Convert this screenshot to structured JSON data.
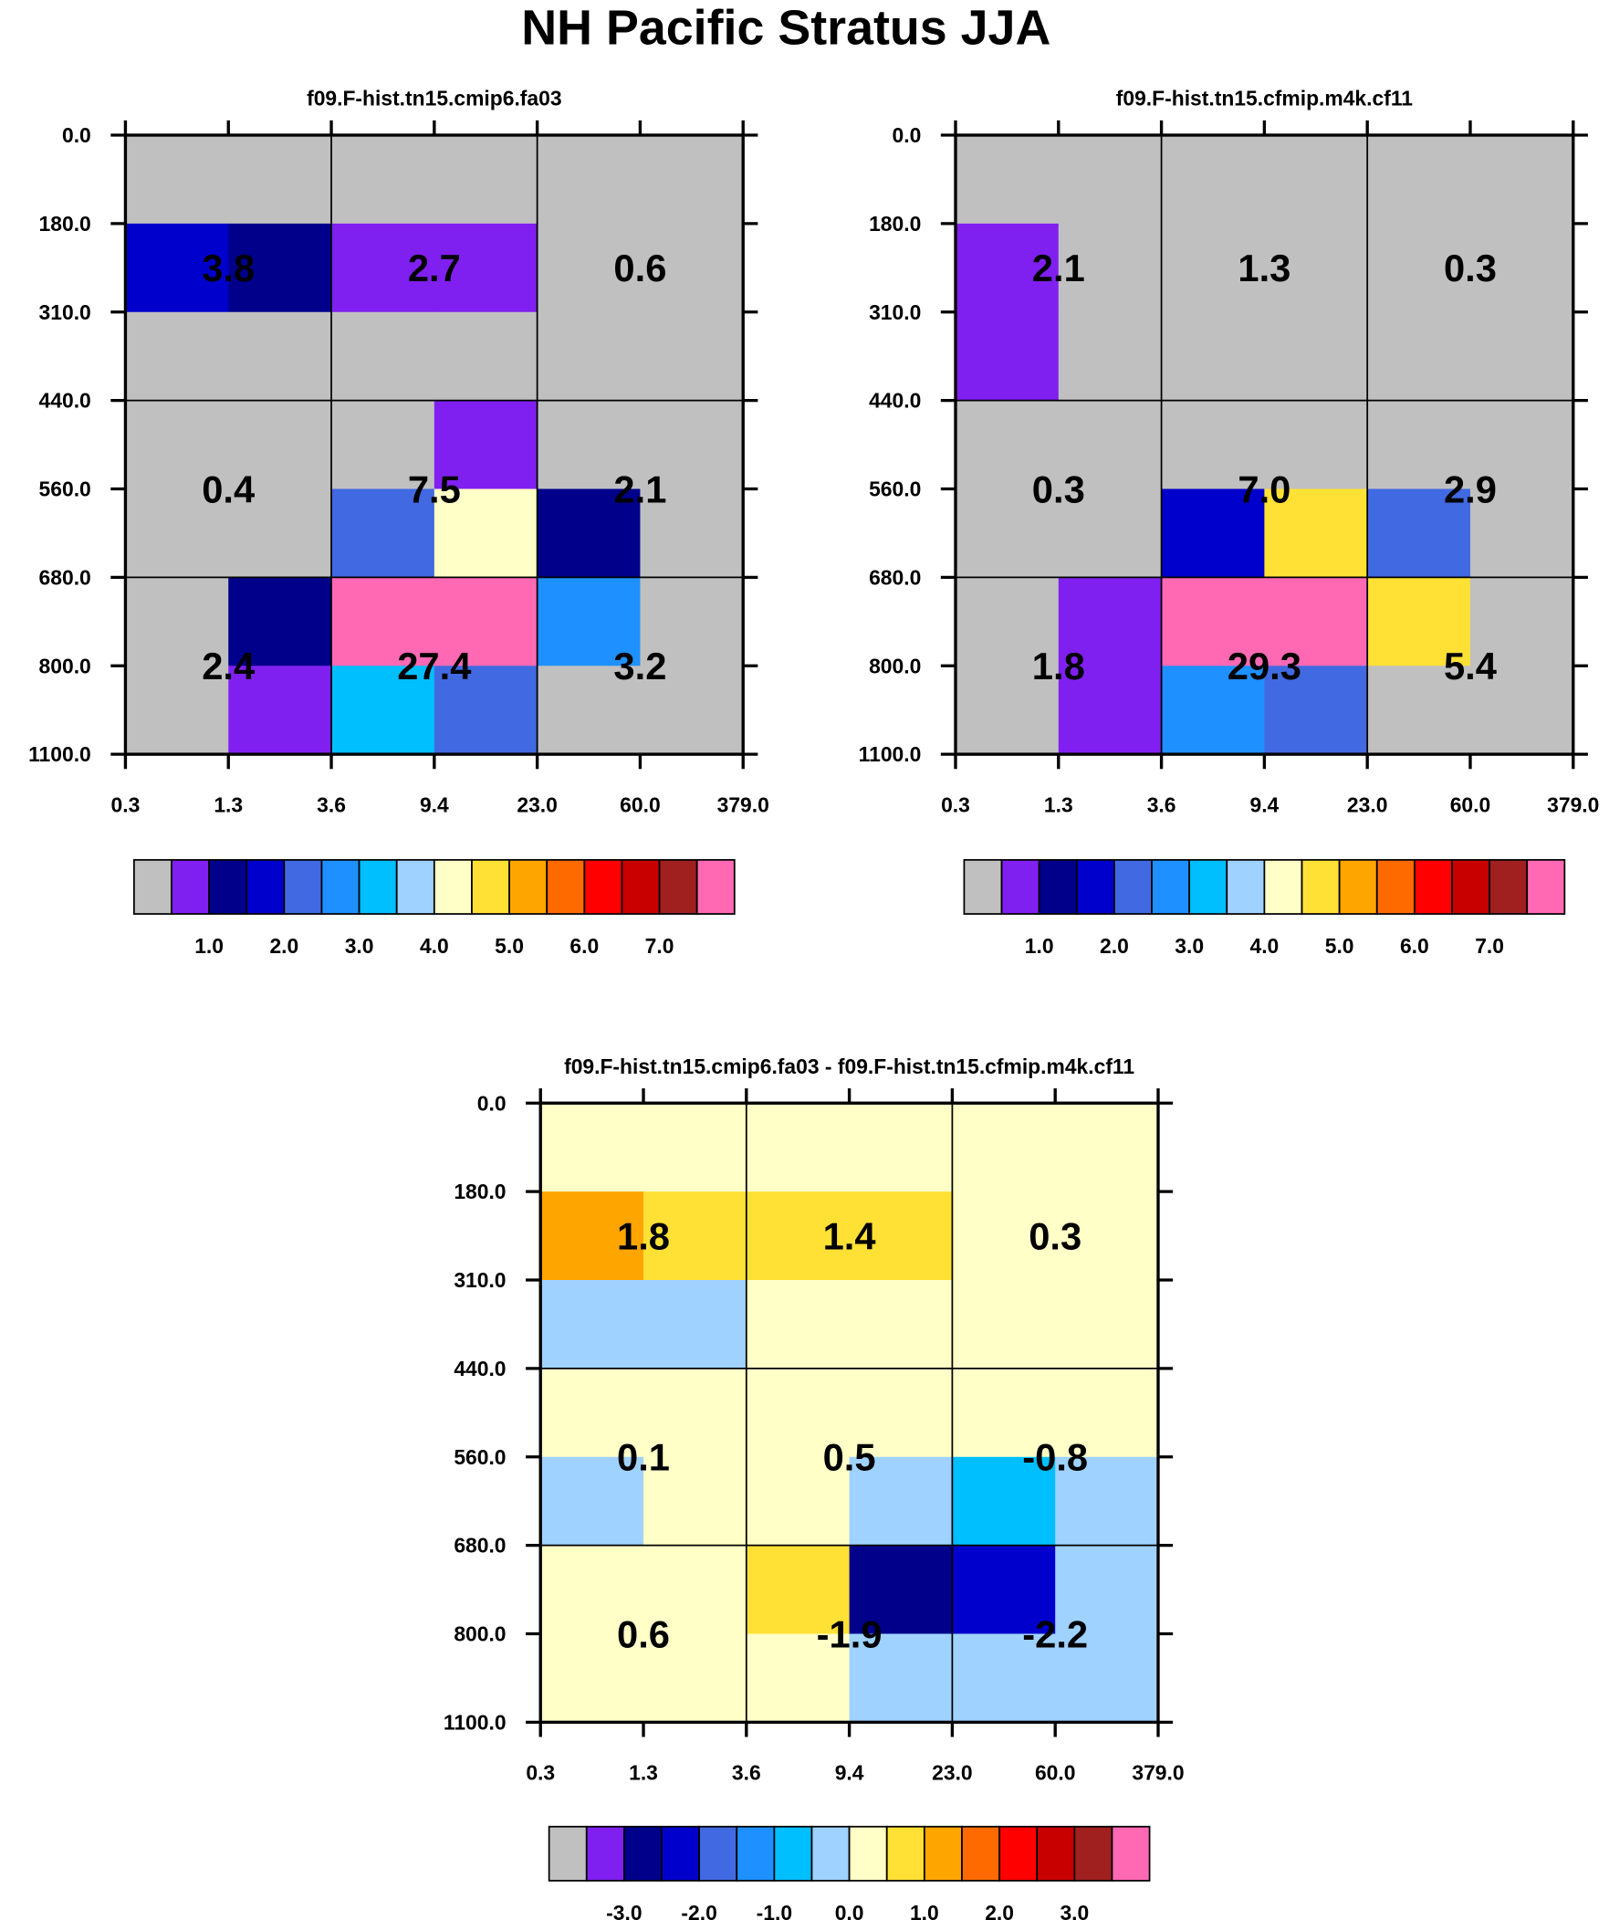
{
  "title": "NH Pacific Stratus JJA",
  "palette": [
    "#c0c0c0",
    "#8020f0",
    "#00008b",
    "#0000cd",
    "#4169e1",
    "#1e90ff",
    "#00bfff",
    "#a0d2ff",
    "#ffffc8",
    "#ffe135",
    "#ffa500",
    "#ff6a00",
    "#ff0000",
    "#c80000",
    "#a02020",
    "#ff69b4"
  ],
  "chart_data": [
    {
      "type": "heatmap",
      "title": "f09.F-hist.tn15.cmip6.fa03",
      "x_ticks": [
        "0.3",
        "1.3",
        "3.6",
        "9.4",
        "23.0",
        "60.0",
        "379.0"
      ],
      "y_ticks": [
        "0.0",
        "180.0",
        "310.0",
        "440.0",
        "560.0",
        "680.0",
        "800.0",
        "1100.0"
      ],
      "cell_color_index": [
        [
          0,
          0,
          0,
          0,
          0,
          0
        ],
        [
          3,
          2,
          1,
          1,
          0,
          0
        ],
        [
          0,
          0,
          0,
          0,
          0,
          0
        ],
        [
          0,
          0,
          0,
          1,
          0,
          0
        ],
        [
          0,
          0,
          4,
          8,
          2,
          0
        ],
        [
          0,
          2,
          15,
          15,
          5,
          0
        ],
        [
          0,
          1,
          6,
          4,
          0,
          0
        ]
      ],
      "box_values": [
        [
          "3.8",
          "2.7",
          "0.6"
        ],
        [
          "0.4",
          "7.5",
          "2.1"
        ],
        [
          "2.4",
          "27.4",
          "3.2"
        ]
      ],
      "colorbar_labels": [
        "1.0",
        "2.0",
        "3.0",
        "4.0",
        "5.0",
        "6.0",
        "7.0"
      ]
    },
    {
      "type": "heatmap",
      "title": "f09.F-hist.tn15.cfmip.m4k.cf11",
      "x_ticks": [
        "0.3",
        "1.3",
        "3.6",
        "9.4",
        "23.0",
        "60.0",
        "379.0"
      ],
      "y_ticks": [
        "0.0",
        "180.0",
        "310.0",
        "440.0",
        "560.0",
        "680.0",
        "800.0",
        "1100.0"
      ],
      "cell_color_index": [
        [
          0,
          0,
          0,
          0,
          0,
          0
        ],
        [
          1,
          0,
          0,
          0,
          0,
          0
        ],
        [
          1,
          0,
          0,
          0,
          0,
          0
        ],
        [
          0,
          0,
          0,
          0,
          0,
          0
        ],
        [
          0,
          0,
          3,
          9,
          4,
          0
        ],
        [
          0,
          1,
          15,
          15,
          9,
          0
        ],
        [
          0,
          1,
          5,
          4,
          0,
          0
        ]
      ],
      "box_values": [
        [
          "2.1",
          "1.3",
          "0.3"
        ],
        [
          "0.3",
          "7.0",
          "2.9"
        ],
        [
          "1.8",
          "29.3",
          "5.4"
        ]
      ],
      "colorbar_labels": [
        "1.0",
        "2.0",
        "3.0",
        "4.0",
        "5.0",
        "6.0",
        "7.0"
      ]
    },
    {
      "type": "heatmap",
      "title": "f09.F-hist.tn15.cmip6.fa03 - f09.F-hist.tn15.cfmip.m4k.cf11",
      "x_ticks": [
        "0.3",
        "1.3",
        "3.6",
        "9.4",
        "23.0",
        "60.0",
        "379.0"
      ],
      "y_ticks": [
        "0.0",
        "180.0",
        "310.0",
        "440.0",
        "560.0",
        "680.0",
        "800.0",
        "1100.0"
      ],
      "cell_color_index": [
        [
          8,
          8,
          8,
          8,
          8,
          8
        ],
        [
          10,
          9,
          9,
          9,
          8,
          8
        ],
        [
          7,
          7,
          8,
          8,
          8,
          8
        ],
        [
          8,
          8,
          8,
          8,
          8,
          8
        ],
        [
          7,
          8,
          8,
          7,
          6,
          7
        ],
        [
          8,
          8,
          9,
          2,
          3,
          7
        ],
        [
          8,
          8,
          8,
          7,
          7,
          7
        ]
      ],
      "box_values": [
        [
          "1.8",
          "1.4",
          "0.3"
        ],
        [
          "0.1",
          "0.5",
          "-0.8"
        ],
        [
          "0.6",
          "-1.9",
          "-2.2"
        ]
      ],
      "colorbar_labels": [
        "-3.0",
        "-2.0",
        "-1.0",
        "0.0",
        "1.0",
        "2.0",
        "3.0"
      ]
    }
  ]
}
